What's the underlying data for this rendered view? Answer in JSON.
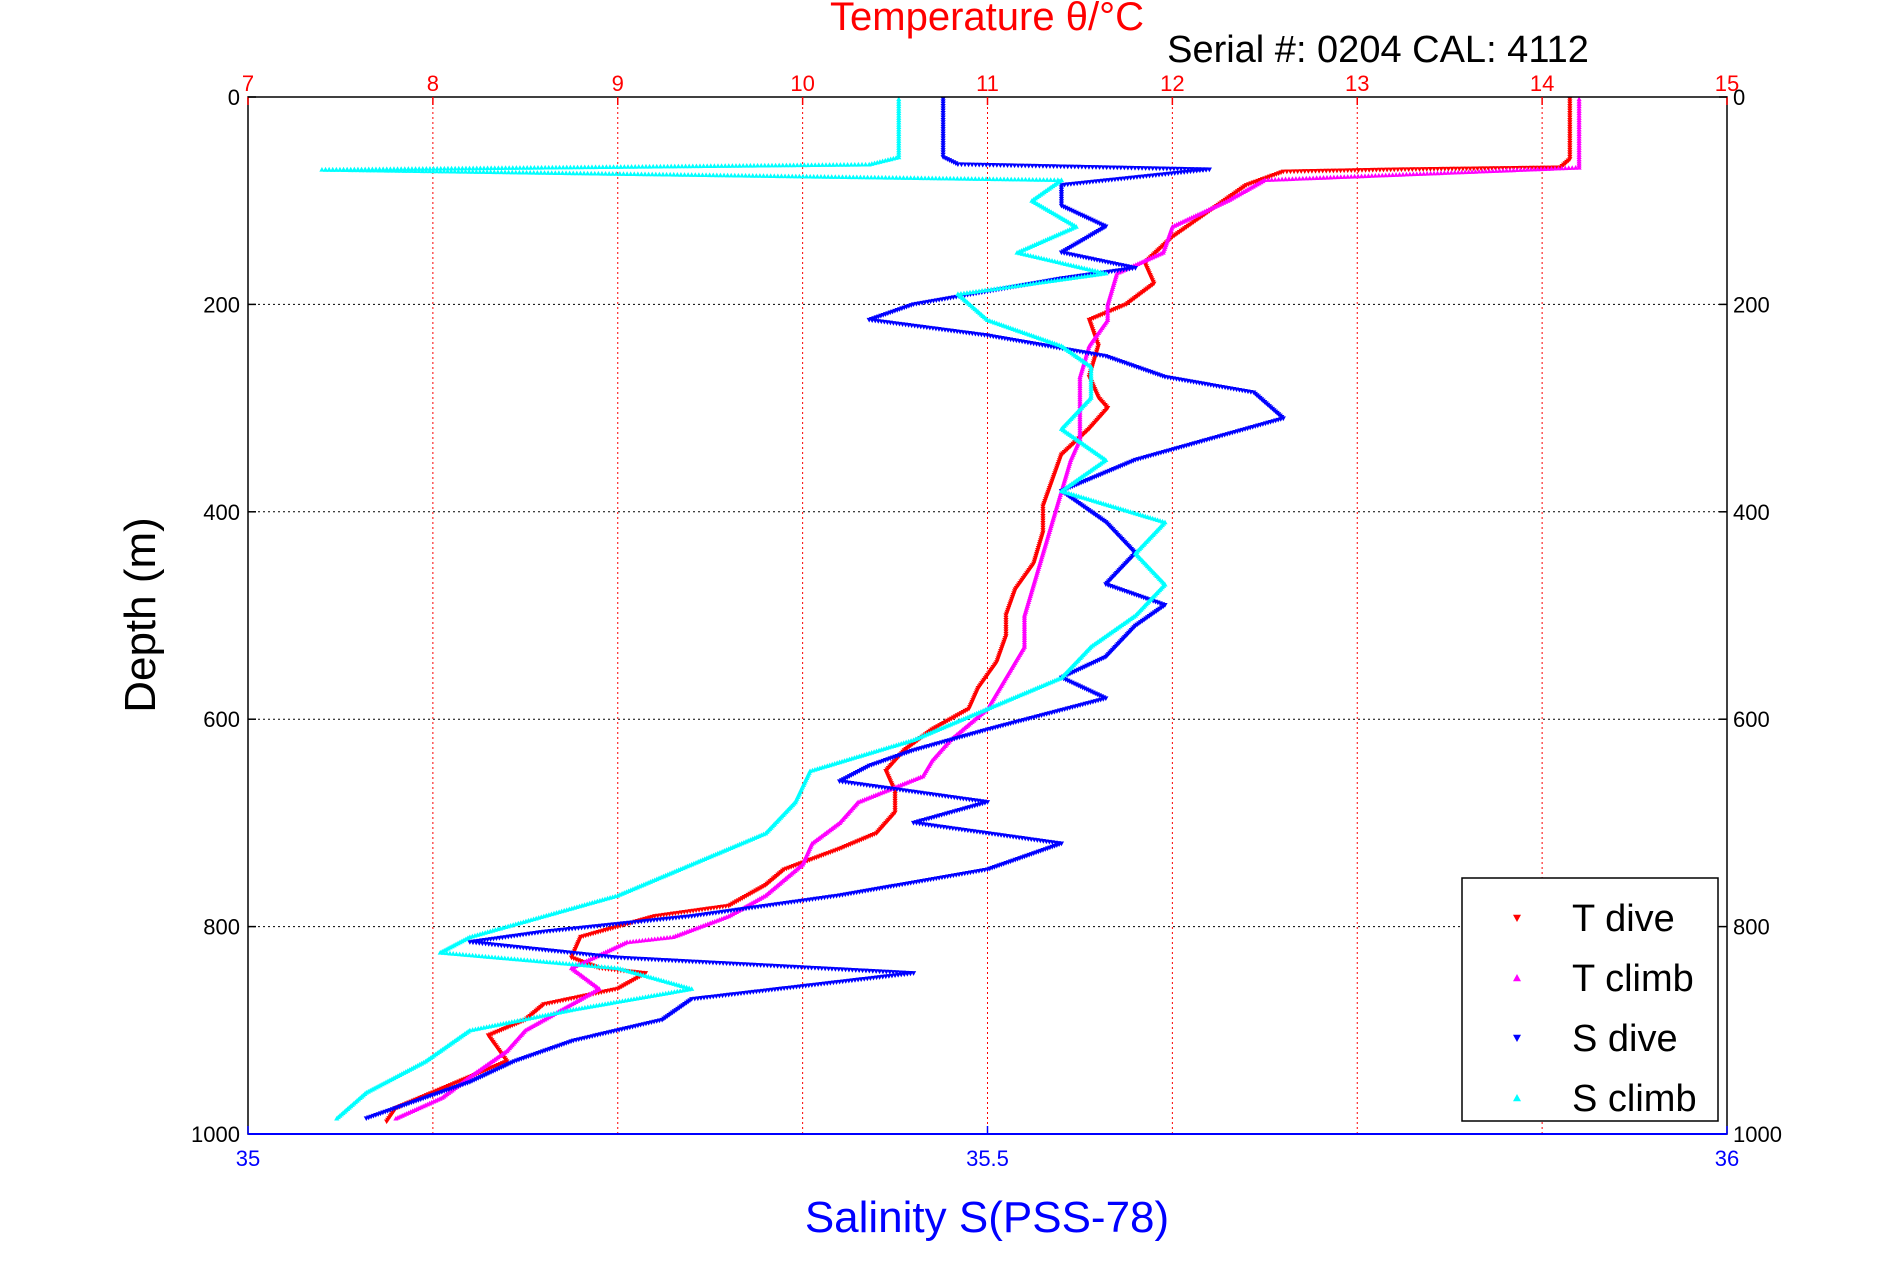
{
  "chart_data": {
    "type": "scatter",
    "title": "Temperature θ/°C",
    "subtitle": "Serial #: 0204  CAL: 4112",
    "ylabel": "Depth (m)",
    "xlabel": "Salinity S(PSS-78)",
    "top_axis": {
      "label": "Temperature θ/°C",
      "range": [
        7,
        15
      ],
      "ticks": [
        "7",
        "8",
        "9",
        "10",
        "11",
        "12",
        "13",
        "14",
        "15"
      ],
      "color": "#ff0000",
      "grid": true
    },
    "bottom_axis": {
      "label": "Salinity S(PSS-78)",
      "range": [
        35,
        36
      ],
      "ticks": [
        "35",
        "35.5",
        "36"
      ],
      "color": "#0000ff"
    },
    "y_axis": {
      "range": [
        0,
        1000
      ],
      "reversed": true,
      "ticks": [
        "0",
        "200",
        "400",
        "600",
        "800",
        "1000"
      ],
      "grid": true
    },
    "legend_position": "bottom-right",
    "legend": [
      "T dive",
      "T climb",
      "S dive",
      "S climb"
    ],
    "series": [
      {
        "name": "T dive",
        "axis": "temperature",
        "color": "#ff0000",
        "marker": "triangle-down",
        "points": [
          [
            14.15,
            2
          ],
          [
            14.15,
            20
          ],
          [
            14.15,
            40
          ],
          [
            14.15,
            60
          ],
          [
            14.1,
            68
          ],
          [
            13.2,
            70
          ],
          [
            12.6,
            72
          ],
          [
            12.4,
            85
          ],
          [
            12.2,
            110
          ],
          [
            12.0,
            135
          ],
          [
            11.85,
            160
          ],
          [
            11.9,
            180
          ],
          [
            11.75,
            200
          ],
          [
            11.55,
            215
          ],
          [
            11.6,
            240
          ],
          [
            11.55,
            270
          ],
          [
            11.6,
            290
          ],
          [
            11.65,
            300
          ],
          [
            11.55,
            320
          ],
          [
            11.4,
            345
          ],
          [
            11.35,
            370
          ],
          [
            11.3,
            395
          ],
          [
            11.3,
            420
          ],
          [
            11.25,
            450
          ],
          [
            11.15,
            475
          ],
          [
            11.1,
            500
          ],
          [
            11.1,
            520
          ],
          [
            11.05,
            545
          ],
          [
            10.95,
            570
          ],
          [
            10.9,
            590
          ],
          [
            10.7,
            610
          ],
          [
            10.55,
            630
          ],
          [
            10.45,
            650
          ],
          [
            10.5,
            670
          ],
          [
            10.5,
            690
          ],
          [
            10.4,
            710
          ],
          [
            10.2,
            725
          ],
          [
            9.9,
            745
          ],
          [
            9.8,
            760
          ],
          [
            9.6,
            780
          ],
          [
            9.2,
            790
          ],
          [
            9.0,
            800
          ],
          [
            8.8,
            810
          ],
          [
            8.75,
            830
          ],
          [
            8.9,
            840
          ],
          [
            9.15,
            845
          ],
          [
            9.0,
            860
          ],
          [
            8.6,
            875
          ],
          [
            8.5,
            890
          ],
          [
            8.3,
            905
          ],
          [
            8.4,
            930
          ],
          [
            8.2,
            945
          ],
          [
            8.0,
            960
          ],
          [
            7.8,
            975
          ],
          [
            7.75,
            988
          ]
        ]
      },
      {
        "name": "T climb",
        "axis": "temperature",
        "color": "#ff00ff",
        "marker": "triangle-up",
        "points": [
          [
            14.2,
            2
          ],
          [
            14.2,
            20
          ],
          [
            14.2,
            40
          ],
          [
            14.2,
            60
          ],
          [
            14.2,
            68
          ],
          [
            12.5,
            80
          ],
          [
            12.3,
            100
          ],
          [
            12.0,
            125
          ],
          [
            11.95,
            150
          ],
          [
            11.7,
            170
          ],
          [
            11.65,
            200
          ],
          [
            11.65,
            215
          ],
          [
            11.55,
            240
          ],
          [
            11.5,
            270
          ],
          [
            11.5,
            300
          ],
          [
            11.5,
            330
          ],
          [
            11.45,
            350
          ],
          [
            11.4,
            380
          ],
          [
            11.35,
            410
          ],
          [
            11.3,
            440
          ],
          [
            11.25,
            470
          ],
          [
            11.2,
            500
          ],
          [
            11.2,
            530
          ],
          [
            11.1,
            560
          ],
          [
            11.0,
            590
          ],
          [
            10.8,
            620
          ],
          [
            10.7,
            640
          ],
          [
            10.65,
            655
          ],
          [
            10.3,
            680
          ],
          [
            10.2,
            700
          ],
          [
            10.05,
            720
          ],
          [
            10.0,
            740
          ],
          [
            9.8,
            770
          ],
          [
            9.6,
            790
          ],
          [
            9.3,
            810
          ],
          [
            9.05,
            815
          ],
          [
            8.75,
            840
          ],
          [
            8.9,
            860
          ],
          [
            8.7,
            880
          ],
          [
            8.5,
            900
          ],
          [
            8.4,
            920
          ],
          [
            8.2,
            945
          ],
          [
            8.05,
            965
          ],
          [
            7.8,
            985
          ]
        ]
      },
      {
        "name": "S dive",
        "axis": "salinity",
        "color": "#0000ff",
        "marker": "triangle-down",
        "points": [
          [
            35.47,
            2
          ],
          [
            35.47,
            20
          ],
          [
            35.47,
            40
          ],
          [
            35.47,
            58
          ],
          [
            35.48,
            65
          ],
          [
            35.65,
            70
          ],
          [
            35.55,
            85
          ],
          [
            35.55,
            105
          ],
          [
            35.58,
            125
          ],
          [
            35.55,
            150
          ],
          [
            35.6,
            165
          ],
          [
            35.55,
            175
          ],
          [
            35.45,
            200
          ],
          [
            35.42,
            215
          ],
          [
            35.5,
            230
          ],
          [
            35.58,
            250
          ],
          [
            35.62,
            270
          ],
          [
            35.68,
            285
          ],
          [
            35.7,
            310
          ],
          [
            35.65,
            330
          ],
          [
            35.6,
            350
          ],
          [
            35.55,
            380
          ],
          [
            35.58,
            410
          ],
          [
            35.6,
            440
          ],
          [
            35.58,
            470
          ],
          [
            35.62,
            490
          ],
          [
            35.6,
            510
          ],
          [
            35.58,
            540
          ],
          [
            35.55,
            560
          ],
          [
            35.58,
            580
          ],
          [
            35.5,
            610
          ],
          [
            35.45,
            630
          ],
          [
            35.42,
            645
          ],
          [
            35.4,
            660
          ],
          [
            35.5,
            680
          ],
          [
            35.45,
            700
          ],
          [
            35.55,
            720
          ],
          [
            35.5,
            745
          ],
          [
            35.4,
            770
          ],
          [
            35.3,
            790
          ],
          [
            35.2,
            805
          ],
          [
            35.15,
            815
          ],
          [
            35.25,
            830
          ],
          [
            35.45,
            845
          ],
          [
            35.3,
            870
          ],
          [
            35.28,
            890
          ],
          [
            35.22,
            910
          ],
          [
            35.18,
            930
          ],
          [
            35.15,
            950
          ],
          [
            35.12,
            965
          ],
          [
            35.08,
            985
          ]
        ]
      },
      {
        "name": "S climb",
        "axis": "salinity",
        "color": "#00ffff",
        "marker": "triangle-up",
        "points": [
          [
            35.44,
            2
          ],
          [
            35.44,
            20
          ],
          [
            35.44,
            40
          ],
          [
            35.44,
            58
          ],
          [
            35.42,
            65
          ],
          [
            35.05,
            70
          ],
          [
            35.55,
            80
          ],
          [
            35.53,
            100
          ],
          [
            35.56,
            125
          ],
          [
            35.52,
            150
          ],
          [
            35.58,
            170
          ],
          [
            35.48,
            190
          ],
          [
            35.5,
            215
          ],
          [
            35.55,
            240
          ],
          [
            35.57,
            260
          ],
          [
            35.57,
            290
          ],
          [
            35.55,
            320
          ],
          [
            35.58,
            350
          ],
          [
            35.55,
            380
          ],
          [
            35.62,
            410
          ],
          [
            35.6,
            440
          ],
          [
            35.62,
            470
          ],
          [
            35.6,
            500
          ],
          [
            35.57,
            530
          ],
          [
            35.55,
            560
          ],
          [
            35.5,
            590
          ],
          [
            35.45,
            620
          ],
          [
            35.38,
            650
          ],
          [
            35.37,
            680
          ],
          [
            35.35,
            710
          ],
          [
            35.3,
            740
          ],
          [
            35.25,
            770
          ],
          [
            35.2,
            790
          ],
          [
            35.15,
            810
          ],
          [
            35.13,
            825
          ],
          [
            35.25,
            840
          ],
          [
            35.3,
            860
          ],
          [
            35.22,
            880
          ],
          [
            35.15,
            900
          ],
          [
            35.12,
            930
          ],
          [
            35.08,
            960
          ],
          [
            35.06,
            985
          ]
        ]
      }
    ]
  }
}
